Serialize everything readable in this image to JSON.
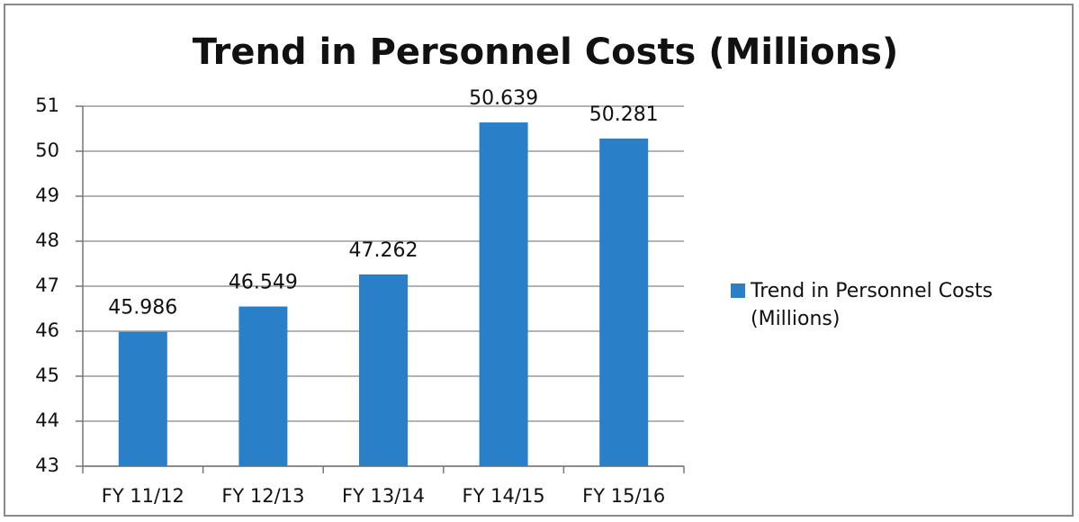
{
  "chart_data": {
    "type": "bar",
    "title": "Trend in Personnel Costs (Millions)",
    "categories": [
      "FY 11/12",
      "FY 12/13",
      "FY 13/14",
      "FY 14/15",
      "FY 15/16"
    ],
    "series": [
      {
        "name": "Trend in Personnel Costs (Millions)",
        "color": "#2a7fc9",
        "values": [
          45.986,
          46.549,
          47.262,
          50.639,
          50.281
        ]
      }
    ],
    "ylim": [
      43,
      51
    ],
    "yticks": [
      43,
      44,
      45,
      46,
      47,
      48,
      49,
      50,
      51
    ],
    "grid": true,
    "legend": "right"
  }
}
